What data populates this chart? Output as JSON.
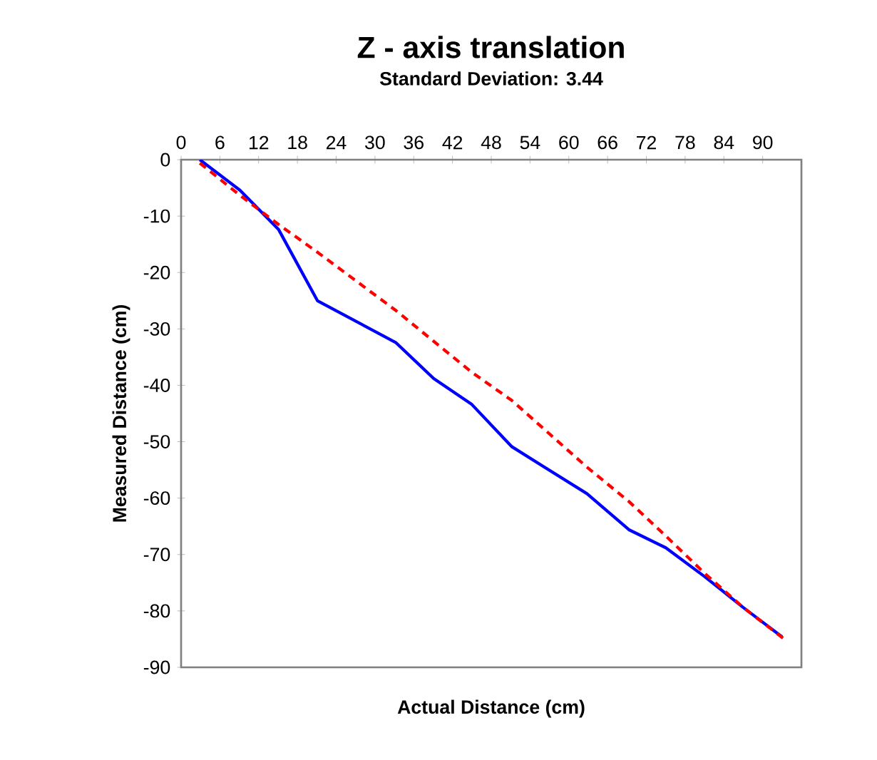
{
  "chart_data": {
    "type": "line",
    "title": "Z - axis translation",
    "subtitle": "Standard Deviation: 3.44",
    "xlabel": "Actual Distance (cm)",
    "ylabel": "Measured Distance (cm)",
    "x": [
      2.9,
      9.1,
      15.1,
      21.1,
      33.2,
      39.1,
      45.0,
      51.2,
      62.8,
      69.3,
      75.0,
      81.0,
      87.0,
      93.0
    ],
    "series": [
      {
        "color": "#0000ff",
        "line_style": "solid",
        "values": [
          0,
          -5.4,
          -12.4,
          -25.0,
          -32.4,
          -38.8,
          -43.4,
          -50.9,
          -59.2,
          -65.6,
          -68.8,
          -73.9,
          -79.4,
          -84.6
        ]
      },
      {
        "color": "#ff0000",
        "line_style": "dashed",
        "x": [
          2.9,
          9.1,
          15.1,
          21.1,
          33.2,
          39.1,
          45.0,
          51.2,
          62.8,
          69.3,
          75.0,
          81.0,
          87.0,
          93.8
        ],
        "values": [
          -0.6,
          -6.3,
          -11.5,
          -16.4,
          -26.7,
          -32.2,
          -37.7,
          -42.7,
          -54.5,
          -60.6,
          -66.7,
          -73.3,
          -79.4,
          -85.4
        ]
      }
    ],
    "xlim": [
      0,
      96
    ],
    "ylim": [
      -90,
      0
    ],
    "xticks": [
      0,
      6,
      12,
      18,
      24,
      30,
      36,
      42,
      48,
      54,
      60,
      66,
      72,
      78,
      84,
      90
    ],
    "yticks": [
      -90,
      -80,
      -70,
      -60,
      -50,
      -40,
      -30,
      -20,
      -10,
      0
    ]
  }
}
